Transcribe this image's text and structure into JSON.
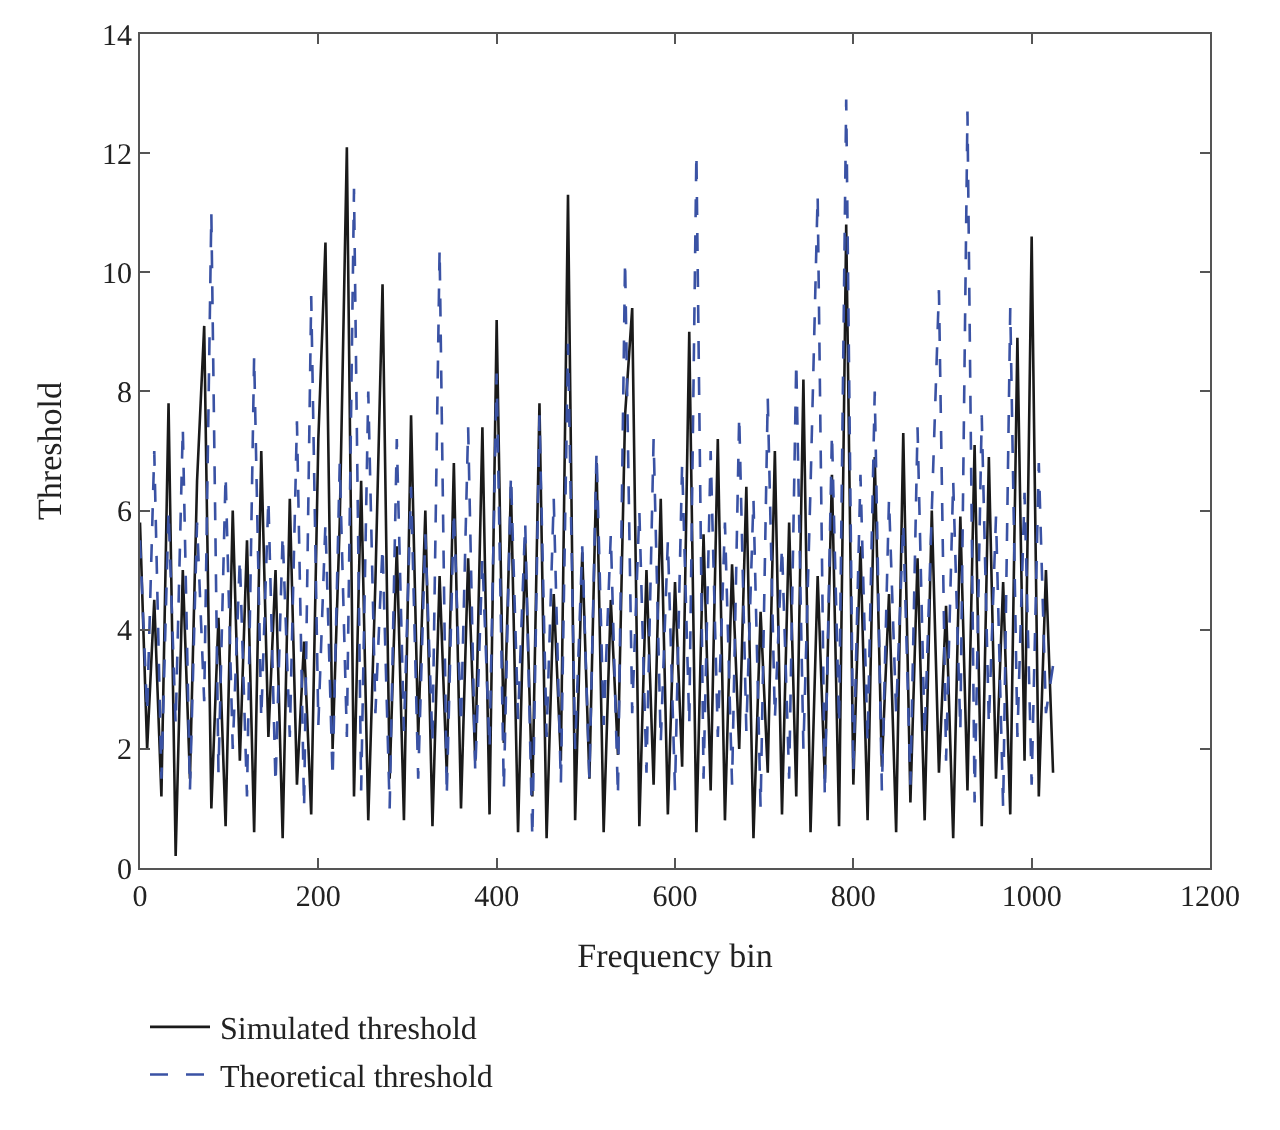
{
  "chart_data": {
    "type": "line",
    "xlabel": "Frequency bin",
    "ylabel": "Threshold",
    "x": [
      0,
      8,
      16,
      24,
      32,
      40,
      48,
      56,
      64,
      72,
      80,
      88,
      96,
      104,
      112,
      120,
      128,
      136,
      144,
      152,
      160,
      168,
      176,
      184,
      192,
      200,
      208,
      216,
      224,
      232,
      240,
      248,
      256,
      264,
      272,
      280,
      288,
      296,
      304,
      312,
      320,
      328,
      336,
      344,
      352,
      360,
      368,
      376,
      384,
      392,
      400,
      408,
      416,
      424,
      432,
      440,
      448,
      456,
      464,
      472,
      480,
      488,
      496,
      504,
      512,
      520,
      528,
      536,
      544,
      552,
      560,
      568,
      576,
      584,
      592,
      600,
      608,
      616,
      624,
      632,
      640,
      648,
      656,
      664,
      672,
      680,
      688,
      696,
      704,
      712,
      720,
      728,
      736,
      744,
      752,
      760,
      768,
      776,
      784,
      792,
      800,
      808,
      816,
      824,
      832,
      840,
      848,
      856,
      864,
      872,
      880,
      888,
      896,
      904,
      912,
      920,
      928,
      936,
      944,
      952,
      960,
      968,
      976,
      984,
      992,
      1000,
      1008,
      1016,
      1024
    ],
    "series": [
      {
        "name": "Simulated threshold",
        "color": "#1a1a1a",
        "line_style": "solid",
        "values": [
          5.8,
          2.0,
          4.5,
          1.2,
          7.8,
          0.2,
          5.0,
          1.5,
          6.5,
          9.1,
          1.0,
          4.2,
          0.7,
          6.0,
          1.8,
          5.5,
          0.6,
          7.0,
          2.2,
          5.0,
          0.5,
          6.2,
          1.4,
          3.8,
          0.9,
          7.2,
          10.5,
          2.0,
          5.8,
          12.1,
          1.2,
          6.5,
          0.8,
          4.8,
          9.8,
          1.5,
          5.4,
          0.8,
          7.6,
          2.2,
          6.0,
          0.7,
          4.9,
          1.6,
          6.8,
          1.0,
          5.2,
          1.8,
          7.4,
          0.9,
          9.2,
          2.1,
          6.4,
          0.6,
          5.5,
          1.2,
          7.8,
          0.5,
          4.6,
          1.8,
          11.3,
          0.8,
          5.3,
          1.5,
          6.8,
          0.6,
          4.5,
          1.9,
          7.6,
          9.4,
          0.7,
          5.0,
          1.4,
          6.2,
          0.9,
          4.8,
          1.7,
          9.0,
          0.6,
          5.6,
          1.3,
          7.2,
          0.8,
          5.1,
          2.0,
          6.4,
          0.5,
          4.3,
          1.6,
          7.0,
          0.9,
          5.8,
          1.2,
          8.2,
          0.6,
          4.9,
          1.5,
          6.6,
          0.7,
          10.8,
          1.4,
          5.4,
          0.8,
          6.9,
          1.7,
          4.6,
          0.6,
          7.3,
          1.1,
          5.2,
          0.8,
          6.0,
          1.6,
          4.4,
          0.5,
          5.9,
          1.3,
          7.1,
          0.7,
          6.9,
          1.5,
          4.8,
          0.9,
          8.9,
          1.8,
          10.6,
          1.2,
          5.0,
          1.6
        ]
      },
      {
        "name": "Theoretical threshold",
        "color": "#3a52a4",
        "line_style": "dashed",
        "values": [
          5.5,
          2.6,
          7.0,
          1.5,
          6.0,
          2.4,
          7.4,
          1.3,
          5.8,
          2.8,
          11.0,
          1.6,
          6.6,
          2.0,
          5.2,
          1.2,
          8.6,
          2.5,
          6.2,
          1.4,
          5.6,
          2.2,
          7.5,
          1.0,
          9.6,
          2.4,
          5.8,
          1.5,
          6.8,
          2.2,
          11.4,
          1.3,
          8.0,
          2.6,
          5.4,
          1.0,
          7.2,
          2.3,
          6.4,
          1.5,
          5.6,
          2.1,
          10.4,
          1.2,
          6.0,
          2.4,
          7.4,
          1.6,
          5.2,
          2.0,
          8.3,
          1.3,
          6.6,
          2.5,
          5.8,
          0.5,
          7.6,
          2.2,
          6.2,
          1.4,
          8.8,
          2.0,
          5.4,
          1.5,
          7.0,
          2.4,
          5.6,
          1.2,
          10.2,
          2.6,
          6.0,
          1.6,
          7.2,
          2.1,
          5.5,
          1.3,
          6.8,
          2.4,
          12.0,
          1.5,
          7.0,
          2.2,
          5.8,
          1.4,
          7.6,
          2.3,
          6.2,
          1.0,
          7.9,
          2.5,
          5.4,
          1.5,
          8.5,
          2.0,
          6.4,
          11.3,
          1.2,
          7.3,
          2.4,
          12.9,
          1.6,
          6.6,
          2.1,
          8.0,
          1.3,
          6.2,
          2.6,
          5.8,
          1.4,
          7.4,
          2.2,
          6.0,
          9.7,
          1.8,
          6.5,
          2.3,
          12.7,
          1.1,
          7.6,
          2.4,
          5.9,
          1.0,
          9.4,
          2.2,
          6.3,
          1.4,
          6.8,
          2.6,
          3.4
        ]
      }
    ],
    "xlim": [
      0,
      1200
    ],
    "xticks": [
      0,
      200,
      400,
      600,
      800,
      1000,
      1200
    ],
    "ylim": [
      0,
      14
    ],
    "yticks": [
      0,
      2,
      4,
      6,
      8,
      10,
      12,
      14
    ],
    "legend": "bottom",
    "marker": "none"
  }
}
